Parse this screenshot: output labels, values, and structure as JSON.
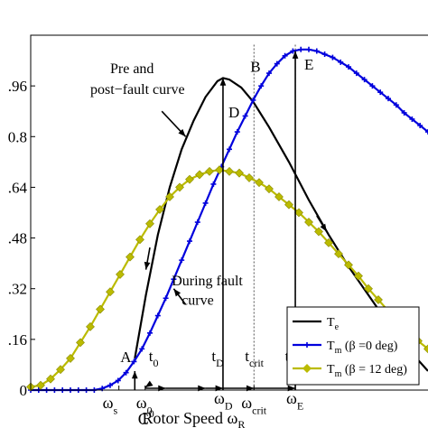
{
  "chart_data": {
    "type": "line",
    "xlabel": "Rotor Speed ω",
    "xlabel_sub": "R",
    "xlim": [
      0,
      1
    ],
    "ylim": [
      0,
      1.12
    ],
    "yticks": [
      {
        "value": 0,
        "label": "0"
      },
      {
        "value": 0.16,
        "label": ".16"
      },
      {
        "value": 0.32,
        "label": ".32"
      },
      {
        "value": 0.48,
        "label": ".48"
      },
      {
        "value": 0.64,
        "label": ".64"
      },
      {
        "value": 0.8,
        "label": "0.8"
      },
      {
        "value": 0.96,
        "label": ".96"
      }
    ],
    "x_markers": [
      {
        "main": "ω",
        "sub": "s",
        "x": 0.222
      },
      {
        "main": "ω",
        "sub": "0",
        "x": 0.288
      },
      {
        "main": "ω",
        "sub": "D",
        "x": 0.484
      },
      {
        "main": "ω",
        "sub": "crit",
        "x": 0.562
      },
      {
        "main": "ω",
        "sub": "E",
        "x": 0.666
      }
    ],
    "extra_text": [
      {
        "main": "C",
        "sup": "0",
        "x": 0.288
      }
    ],
    "time_labels": [
      {
        "main": "t",
        "sub": "0",
        "x": 0.288
      },
      {
        "main": "t",
        "sub": "D",
        "x": 0.46
      },
      {
        "main": "t",
        "sub": "crit",
        "x": 0.562
      },
      {
        "main": "t",
        "sub": "E",
        "x": 0.64
      }
    ],
    "points": [
      {
        "name": "A",
        "x": 0.262,
        "y": 0.1
      },
      {
        "name": "B",
        "x": 0.562,
        "y": 0.965
      },
      {
        "name": "D",
        "x": 0.484,
        "y": 0.9
      },
      {
        "name": "E",
        "x": 0.666,
        "y": 1.035
      }
    ],
    "annotations": [
      {
        "text": "Pre and",
        "line": 1
      },
      {
        "text": "post−fault curve",
        "line": 2
      },
      {
        "text": "During fault",
        "line": 1
      },
      {
        "text": "curve",
        "line": 2
      }
    ],
    "series": [
      {
        "name": "T",
        "name_sub": "e",
        "color": "#000000",
        "marker": "none",
        "x": [
          0.262,
          0.29,
          0.32,
          0.35,
          0.38,
          0.41,
          0.44,
          0.47,
          0.484,
          0.5,
          0.53,
          0.56,
          0.6,
          0.65,
          0.7,
          0.75,
          0.8,
          0.85,
          0.9,
          0.95,
          1.0
        ],
        "y": [
          0.1,
          0.3,
          0.49,
          0.64,
          0.76,
          0.85,
          0.925,
          0.975,
          0.985,
          0.98,
          0.955,
          0.91,
          0.83,
          0.72,
          0.6,
          0.49,
          0.39,
          0.3,
          0.21,
          0.13,
          0.06
        ]
      },
      {
        "name": "T",
        "name_sub": "m",
        "name_suffix": " (β =0 deg)",
        "color": "#0000dd",
        "marker": "plus",
        "x": [
          0.0,
          0.02,
          0.04,
          0.06,
          0.08,
          0.1,
          0.12,
          0.14,
          0.16,
          0.18,
          0.2,
          0.22,
          0.24,
          0.26,
          0.28,
          0.3,
          0.32,
          0.34,
          0.36,
          0.38,
          0.4,
          0.42,
          0.44,
          0.46,
          0.48,
          0.5,
          0.52,
          0.54,
          0.56,
          0.58,
          0.6,
          0.62,
          0.64,
          0.66,
          0.68,
          0.7,
          0.72,
          0.74,
          0.76,
          0.78,
          0.8,
          0.82,
          0.84,
          0.86,
          0.88,
          0.9,
          0.92,
          0.94,
          0.96,
          0.98,
          1.0
        ],
        "y": [
          0.0,
          0.0,
          0.0,
          0.0,
          0.0,
          0.0,
          0.0,
          0.0,
          0.0,
          0.005,
          0.015,
          0.03,
          0.055,
          0.09,
          0.13,
          0.18,
          0.235,
          0.29,
          0.35,
          0.41,
          0.47,
          0.53,
          0.59,
          0.65,
          0.705,
          0.76,
          0.815,
          0.865,
          0.915,
          0.96,
          1.0,
          1.03,
          1.055,
          1.07,
          1.075,
          1.075,
          1.07,
          1.06,
          1.05,
          1.035,
          1.02,
          1.0,
          0.98,
          0.96,
          0.94,
          0.92,
          0.9,
          0.875,
          0.855,
          0.835,
          0.815
        ]
      },
      {
        "name": "T",
        "name_sub": "m",
        "name_suffix": " (β = 12 deg)",
        "color": "#bbbb00",
        "marker": "diamond",
        "x": [
          0.0,
          0.025,
          0.05,
          0.075,
          0.1,
          0.125,
          0.15,
          0.175,
          0.2,
          0.225,
          0.25,
          0.275,
          0.3,
          0.325,
          0.35,
          0.375,
          0.4,
          0.425,
          0.45,
          0.475,
          0.5,
          0.525,
          0.55,
          0.575,
          0.6,
          0.625,
          0.65,
          0.675,
          0.7,
          0.725,
          0.75,
          0.775,
          0.8,
          0.825,
          0.85,
          0.875,
          0.9,
          0.925,
          0.95,
          0.975,
          1.0
        ],
        "y": [
          0.01,
          0.015,
          0.035,
          0.065,
          0.1,
          0.15,
          0.2,
          0.255,
          0.31,
          0.365,
          0.42,
          0.475,
          0.525,
          0.57,
          0.61,
          0.64,
          0.665,
          0.68,
          0.69,
          0.695,
          0.69,
          0.685,
          0.67,
          0.655,
          0.635,
          0.61,
          0.585,
          0.56,
          0.53,
          0.5,
          0.465,
          0.43,
          0.395,
          0.36,
          0.32,
          0.285,
          0.25,
          0.215,
          0.185,
          0.155,
          0.13
        ]
      }
    ]
  }
}
